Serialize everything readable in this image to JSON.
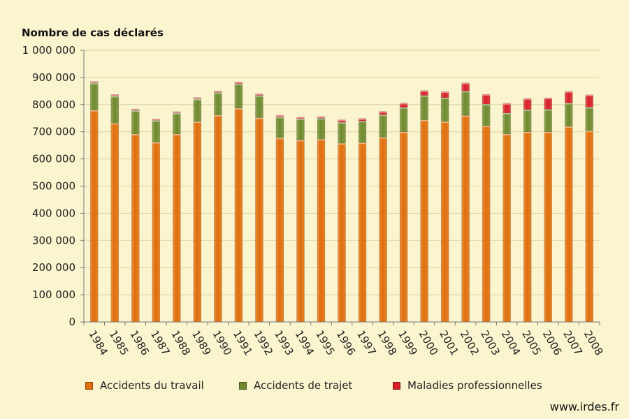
{
  "chart_data": {
    "type": "bar",
    "stacked": true,
    "title": "Nombre de cas déclarés",
    "categories": [
      "1984",
      "1985",
      "1986",
      "1987",
      "1988",
      "1989",
      "1990",
      "1991",
      "1992",
      "1993",
      "1994",
      "1995",
      "1996",
      "1997",
      "1998",
      "1999",
      "2000",
      "2001",
      "2002",
      "2003",
      "2004",
      "2005",
      "2006",
      "2007",
      "2008"
    ],
    "series": [
      {
        "name": "Accidents du travail",
        "color": "#e06e0c",
        "values": [
          780000,
          732000,
          692000,
          662000,
          692000,
          738000,
          762000,
          787000,
          752000,
          678000,
          670000,
          673000,
          658000,
          660000,
          680000,
          700000,
          744000,
          738000,
          760000,
          722000,
          692000,
          700000,
          700000,
          720000,
          704000
        ]
      },
      {
        "name": "Accidents de trajet",
        "color": "#6f8a2f",
        "values": [
          100000,
          100000,
          87000,
          80000,
          77000,
          83000,
          83000,
          90000,
          82000,
          77000,
          78000,
          77000,
          77000,
          80000,
          83000,
          90000,
          90000,
          88000,
          90000,
          80000,
          77000,
          82000,
          83000,
          86000,
          87000
        ]
      },
      {
        "name": "Maladies professionnelles",
        "color": "#d8202a",
        "values": [
          5000,
          5000,
          5000,
          5000,
          5000,
          5000,
          5000,
          6000,
          6000,
          6000,
          6000,
          6000,
          9000,
          9000,
          12000,
          16000,
          18000,
          22000,
          30000,
          36000,
          36000,
          41000,
          42000,
          43000,
          45000
        ]
      }
    ],
    "yticks": [
      "0",
      "100 000",
      "200 000",
      "300 000",
      "400 000",
      "500 000",
      "600 000",
      "700 000",
      "800 000",
      "900 000",
      "1 000 000"
    ],
    "ylim": [
      0,
      1000000
    ],
    "grid": true,
    "legend_position": "bottom"
  },
  "source": "www.irdes.fr"
}
